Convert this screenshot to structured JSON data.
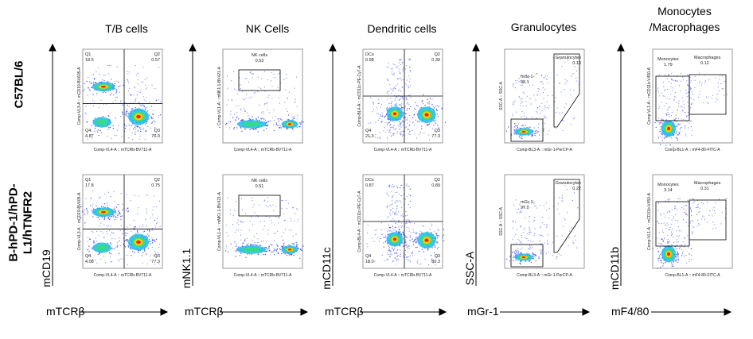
{
  "columns": [
    {
      "title": "T/B cells",
      "ylabel": "mCD19",
      "xlabel": "mTCRβ"
    },
    {
      "title": "NK Cells",
      "ylabel": "mNK1.1",
      "xlabel": "mTCRβ"
    },
    {
      "title": "Dendritic cells",
      "ylabel": "mCD11c",
      "xlabel": "mTCRβ"
    },
    {
      "title": "Granulocytes",
      "ylabel": "SSC-A",
      "xlabel": "mGr-1"
    },
    {
      "title_line1": "Monocytes",
      "title_line2": "/Macrophages",
      "ylabel": "mCD11b",
      "xlabel": "mF4/80"
    }
  ],
  "rows": [
    {
      "label": "C57BL/6"
    },
    {
      "label_line1": "B-hPD-1/hPD-",
      "label_line2": "L1/hTNFR2"
    }
  ],
  "chart_data": [
    {
      "type": "scatter",
      "row": "C57BL/6",
      "panel": "T/B cells",
      "axis_x": "Comp-VL4-A :: mTCRb-BV711-A",
      "axis_y": "Comp-VL3-A :: mCD19-BV605-A",
      "gates": [
        {
          "name": "Q1",
          "value": "18.5"
        },
        {
          "name": "Q2",
          "value": "0.57"
        },
        {
          "name": "Q3",
          "value": "76.0"
        },
        {
          "name": "Q4",
          "value": "4.87"
        }
      ]
    },
    {
      "type": "scatter",
      "row": "C57BL/6",
      "panel": "NK Cells",
      "axis_x": "Comp-VL4-A :: mTCRb-BV711-A",
      "axis_y": "Comp-VL1-A :: mNK1.1-BV421-A",
      "gates": [
        {
          "name": "NK cells",
          "value": "0.53"
        }
      ]
    },
    {
      "type": "scatter",
      "row": "C57BL/6",
      "panel": "Dendritic cells",
      "axis_x": "Comp-VL4-A :: mTCRb-BV711-A",
      "axis_y": "Comp-BL4-A :: mCD11c-PE-Cy7-A",
      "gates": [
        {
          "name": "DCs",
          "value": "0.98"
        },
        {
          "name": "Q2",
          "value": "0.39"
        },
        {
          "name": "Q3",
          "value": "77.3"
        },
        {
          "name": "Q4",
          "value": "21.3"
        }
      ]
    },
    {
      "type": "scatter",
      "row": "C57BL/6",
      "panel": "Granulocytes",
      "axis_x": "Comp-BL3-A :: mGr-1-PerCP-A",
      "axis_y": "SSC-A :: SSC-A",
      "gates": [
        {
          "name": "Granulocytes",
          "value": "0.13"
        },
        {
          "name": "mGr-1-",
          "value": "98.1"
        }
      ]
    },
    {
      "type": "scatter",
      "row": "C57BL/6",
      "panel": "Monocytes/Macrophages",
      "axis_x": "Comp-BL1-A :: mF4-80-FITC-A",
      "axis_y": "Comp-VL1-A :: mCD11b-V450-A",
      "gates": [
        {
          "name": "Monocytes",
          "value": "1.79"
        },
        {
          "name": "Macrophages",
          "value": "0.12"
        }
      ]
    },
    {
      "type": "scatter",
      "row": "B-hPD-1/hPD-L1/hTNFR2",
      "panel": "T/B cells",
      "axis_x": "Comp-VL4-A :: mTCRb-BV711-A",
      "axis_y": "Comp-VL3-A :: mCD19-BV605-A",
      "gates": [
        {
          "name": "Q1",
          "value": "17.8"
        },
        {
          "name": "Q2",
          "value": "0.75"
        },
        {
          "name": "Q3",
          "value": "77.3"
        },
        {
          "name": "Q4",
          "value": "4.08"
        }
      ]
    },
    {
      "type": "scatter",
      "row": "B-hPD-1/hPD-L1/hTNFR2",
      "panel": "NK Cells",
      "axis_x": "Comp-VL4-A :: mTCRb-BV711-A",
      "axis_y": "Comp-VL1-A :: mNK1.1-BV421-A",
      "gates": [
        {
          "name": "NK cells",
          "value": "0.51"
        }
      ]
    },
    {
      "type": "scatter",
      "row": "B-hPD-1/hPD-L1/hTNFR2",
      "panel": "Dendritic cells",
      "axis_x": "Comp-VL4-A :: mTCRb-BV711-A",
      "axis_y": "Comp-BL4-A :: mCD11c-PE-Cy7-A",
      "gates": [
        {
          "name": "DCs",
          "value": "0.87"
        },
        {
          "name": "Q2",
          "value": "0.89"
        },
        {
          "name": "Q3",
          "value": "80.3"
        },
        {
          "name": "Q4",
          "value": "18.0"
        }
      ]
    },
    {
      "type": "scatter",
      "row": "B-hPD-1/hPD-L1/hTNFR2",
      "panel": "Granulocytes",
      "axis_x": "Comp-BL3-A :: mGr-1-PerCP-A",
      "axis_y": "SSC-A :: SSC-A",
      "gates": [
        {
          "name": "Granulocytes",
          "value": "0.22"
        },
        {
          "name": "mGr-1-",
          "value": "97.0"
        }
      ]
    },
    {
      "type": "scatter",
      "row": "B-hPD-1/hPD-L1/hTNFR2",
      "panel": "Monocytes/Macrophages",
      "axis_x": "Comp-BL1-A :: mF4-80-FITC-A",
      "axis_y": "Comp-VL1-A :: mCD11b-V450-A",
      "gates": [
        {
          "name": "Monocytes",
          "value": "3.14"
        },
        {
          "name": "Macrophages",
          "value": "0.31"
        }
      ]
    }
  ],
  "colors": {
    "cold": "#2233ee",
    "mid": "#22bbee",
    "warm": "#ffcc00",
    "hot": "#ee2200",
    "arrow": "#000000"
  }
}
